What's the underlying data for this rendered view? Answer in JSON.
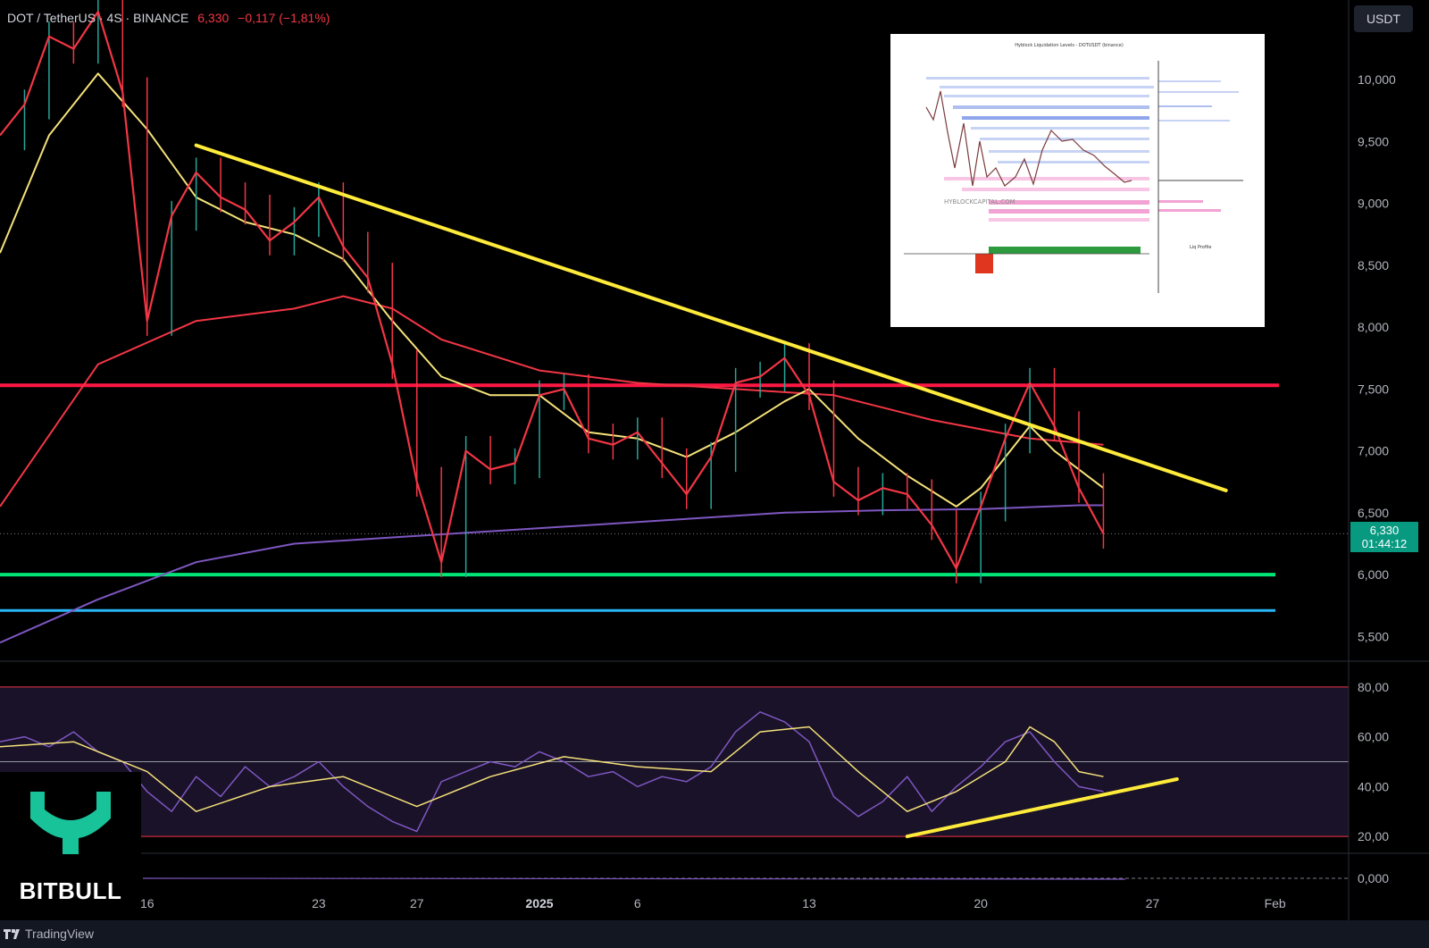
{
  "header": {
    "pair": "DOT / TetherUS",
    "timeframe": "4S",
    "exchange": "BINANCE",
    "last": "6,330",
    "change": "−0,117 (−1,81%)"
  },
  "currency_button": "USDT",
  "current_price_tag": {
    "price": "6,330",
    "countdown": "01:44:12"
  },
  "brand": {
    "name": "BITBULL",
    "platform": "TradingView",
    "accent": "#19c39a"
  },
  "inset_chart": {
    "watermark": "HYBLOCKCAPITAL.COM",
    "title": "Hyblock Liquidation Levels - DOTUSDT (binance)",
    "side_label": "Liq Profile"
  },
  "chart_data": {
    "type": "line",
    "price_panel": {
      "y_ticks": [
        10000,
        9500,
        9000,
        8500,
        8000,
        7500,
        7000,
        6500,
        6000,
        5500
      ],
      "y_tick_labels": [
        "10,000",
        "9,500",
        "9,000",
        "8,500",
        "8,000",
        "7,500",
        "7,000",
        "6,500",
        "6,000",
        "5,500"
      ],
      "ylim": [
        5300,
        10500
      ],
      "x_labels": [
        "16",
        "23",
        "27",
        "2025",
        "6",
        "13",
        "20",
        "27",
        "Feb"
      ],
      "x_label_index": [
        6,
        13,
        17,
        22,
        26,
        33,
        40,
        47,
        52
      ],
      "price_x_range": [
        0,
        45
      ],
      "price": [
        [
          0,
          9550
        ],
        [
          1,
          9800
        ],
        [
          2,
          10350
        ],
        [
          3,
          10250
        ],
        [
          4,
          10550
        ],
        [
          5,
          9900
        ],
        [
          6,
          8050
        ],
        [
          7,
          8900
        ],
        [
          8,
          9250
        ],
        [
          9,
          9050
        ],
        [
          10,
          8950
        ],
        [
          11,
          8700
        ],
        [
          12,
          8850
        ],
        [
          13,
          9050
        ],
        [
          14,
          8650
        ],
        [
          15,
          8400
        ],
        [
          16,
          7700
        ],
        [
          17,
          6750
        ],
        [
          18,
          6100
        ],
        [
          19,
          7000
        ],
        [
          20,
          6850
        ],
        [
          21,
          6900
        ],
        [
          22,
          7450
        ],
        [
          23,
          7500
        ],
        [
          24,
          7100
        ],
        [
          25,
          7050
        ],
        [
          26,
          7150
        ],
        [
          27,
          6900
        ],
        [
          28,
          6650
        ],
        [
          29,
          6950
        ],
        [
          30,
          7550
        ],
        [
          31,
          7600
        ],
        [
          32,
          7750
        ],
        [
          33,
          7450
        ],
        [
          34,
          6750
        ],
        [
          35,
          6600
        ],
        [
          36,
          6700
        ],
        [
          37,
          6650
        ],
        [
          38,
          6400
        ],
        [
          39,
          6050
        ],
        [
          40,
          6550
        ],
        [
          41,
          7100
        ],
        [
          42,
          7550
        ],
        [
          43,
          7200
        ],
        [
          44,
          6700
        ],
        [
          45,
          6330
        ]
      ],
      "ema_fast": [
        [
          0,
          8600
        ],
        [
          2,
          9550
        ],
        [
          4,
          10050
        ],
        [
          6,
          9600
        ],
        [
          8,
          9050
        ],
        [
          10,
          8850
        ],
        [
          12,
          8750
        ],
        [
          14,
          8550
        ],
        [
          16,
          8050
        ],
        [
          18,
          7600
        ],
        [
          20,
          7450
        ],
        [
          22,
          7450
        ],
        [
          24,
          7150
        ],
        [
          26,
          7100
        ],
        [
          28,
          6950
        ],
        [
          30,
          7150
        ],
        [
          32,
          7400
        ],
        [
          33,
          7500
        ],
        [
          35,
          7100
        ],
        [
          37,
          6800
        ],
        [
          39,
          6550
        ],
        [
          40,
          6700
        ],
        [
          42,
          7200
        ],
        [
          43,
          7000
        ],
        [
          45,
          6700
        ]
      ],
      "ema_slow": [
        [
          0,
          6550
        ],
        [
          4,
          7700
        ],
        [
          8,
          8050
        ],
        [
          12,
          8150
        ],
        [
          14,
          8250
        ],
        [
          16,
          8150
        ],
        [
          18,
          7900
        ],
        [
          22,
          7650
        ],
        [
          26,
          7550
        ],
        [
          30,
          7500
        ],
        [
          34,
          7450
        ],
        [
          38,
          7250
        ],
        [
          42,
          7100
        ],
        [
          45,
          7050
        ]
      ],
      "ema_long": [
        [
          0,
          5450
        ],
        [
          4,
          5800
        ],
        [
          8,
          6100
        ],
        [
          12,
          6250
        ],
        [
          16,
          6300
        ],
        [
          20,
          6350
        ],
        [
          24,
          6400
        ],
        [
          28,
          6450
        ],
        [
          32,
          6500
        ],
        [
          36,
          6520
        ],
        [
          40,
          6530
        ],
        [
          44,
          6560
        ],
        [
          45,
          6560
        ]
      ],
      "trendline": [
        [
          8,
          9470
        ],
        [
          50,
          6680
        ]
      ],
      "resistance": 7530,
      "support": 6000,
      "lower_support": 5710,
      "current": 6330,
      "colors": {
        "candles": "#f23645",
        "up_wick": "#26a69a",
        "ema_fast": "#f5e27a",
        "ema_slow": "#f23645",
        "ema_long": "#7e57c2",
        "trendline": "#ffeb3b",
        "resistance": "#ff1744",
        "support": "#00e676",
        "lower_support": "#29b6f6"
      }
    },
    "rsi_panel": {
      "y_ticks": [
        80,
        60,
        40,
        20
      ],
      "y_tick_labels": [
        "80,00",
        "60,00",
        "40,00",
        "20,00"
      ],
      "ylim": [
        15,
        85
      ],
      "band": [
        20,
        80
      ],
      "midline": 50,
      "rsi": [
        [
          0,
          58
        ],
        [
          1,
          60
        ],
        [
          2,
          56
        ],
        [
          3,
          62
        ],
        [
          4,
          54
        ],
        [
          5,
          50
        ],
        [
          6,
          38
        ],
        [
          7,
          30
        ],
        [
          8,
          44
        ],
        [
          9,
          36
        ],
        [
          10,
          48
        ],
        [
          11,
          40
        ],
        [
          12,
          44
        ],
        [
          13,
          50
        ],
        [
          14,
          40
        ],
        [
          15,
          32
        ],
        [
          16,
          26
        ],
        [
          17,
          22
        ],
        [
          18,
          42
        ],
        [
          19,
          46
        ],
        [
          20,
          50
        ],
        [
          21,
          48
        ],
        [
          22,
          54
        ],
        [
          23,
          50
        ],
        [
          24,
          44
        ],
        [
          25,
          46
        ],
        [
          26,
          40
        ],
        [
          27,
          44
        ],
        [
          28,
          42
        ],
        [
          29,
          48
        ],
        [
          30,
          62
        ],
        [
          31,
          70
        ],
        [
          32,
          66
        ],
        [
          33,
          58
        ],
        [
          34,
          36
        ],
        [
          35,
          28
        ],
        [
          36,
          34
        ],
        [
          37,
          44
        ],
        [
          38,
          30
        ],
        [
          39,
          40
        ],
        [
          40,
          48
        ],
        [
          41,
          58
        ],
        [
          42,
          62
        ],
        [
          43,
          50
        ],
        [
          44,
          40
        ],
        [
          45,
          38
        ]
      ],
      "rsi_ma": [
        [
          0,
          56
        ],
        [
          3,
          58
        ],
        [
          6,
          46
        ],
        [
          8,
          30
        ],
        [
          11,
          40
        ],
        [
          14,
          44
        ],
        [
          17,
          32
        ],
        [
          20,
          44
        ],
        [
          23,
          52
        ],
        [
          26,
          48
        ],
        [
          29,
          46
        ],
        [
          31,
          62
        ],
        [
          33,
          64
        ],
        [
          35,
          46
        ],
        [
          37,
          30
        ],
        [
          39,
          38
        ],
        [
          41,
          50
        ],
        [
          42,
          64
        ],
        [
          43,
          58
        ],
        [
          44,
          46
        ],
        [
          45,
          44
        ]
      ],
      "trendline": [
        [
          37,
          20
        ],
        [
          48,
          43
        ]
      ],
      "colors": {
        "rsi": "#7e57c2",
        "rsi_ma": "#f5e27a",
        "trendline": "#ffeb3b",
        "band": "#f23645",
        "fill": "#1a1228"
      }
    },
    "macd_panel": {
      "y_ticks": [
        0
      ],
      "y_tick_labels": [
        "0,000"
      ]
    }
  }
}
